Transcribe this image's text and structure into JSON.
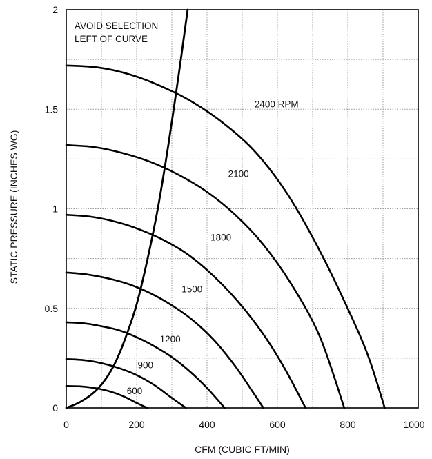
{
  "chart_data": {
    "type": "line",
    "title": "",
    "xlabel": "CFM (CUBIC FT/MIN)",
    "ylabel": "STATIC PRESSURE (INCHES WG)",
    "xlim": [
      0,
      1000
    ],
    "ylim": [
      0,
      2
    ],
    "xticks": [
      "0",
      "200",
      "400",
      "600",
      "800",
      "1000"
    ],
    "yticks": [
      "0",
      "0.5",
      "1",
      "1.5",
      "2"
    ],
    "grid": true,
    "annotation": [
      "AVOID SELECTION",
      "LEFT OF CURVE"
    ],
    "series": [
      {
        "name": "600",
        "x": [
          0,
          40,
          80,
          120,
          160,
          200,
          230
        ],
        "y": [
          0.11,
          0.108,
          0.1,
          0.085,
          0.06,
          0.025,
          0
        ]
      },
      {
        "name": "900",
        "x": [
          0,
          50,
          100,
          150,
          200,
          250,
          300,
          340
        ],
        "y": [
          0.245,
          0.24,
          0.225,
          0.2,
          0.165,
          0.115,
          0.05,
          0
        ]
      },
      {
        "name": "1200",
        "x": [
          0,
          50,
          100,
          150,
          200,
          250,
          300,
          350,
          400,
          450
        ],
        "y": [
          0.43,
          0.425,
          0.41,
          0.39,
          0.355,
          0.31,
          0.255,
          0.185,
          0.1,
          0
        ]
      },
      {
        "name": "1500",
        "x": [
          0,
          60,
          120,
          180,
          240,
          300,
          360,
          420,
          480,
          530,
          560
        ],
        "y": [
          0.68,
          0.67,
          0.65,
          0.62,
          0.575,
          0.515,
          0.44,
          0.34,
          0.21,
          0.08,
          0
        ]
      },
      {
        "name": "1800",
        "x": [
          0,
          70,
          140,
          210,
          280,
          350,
          420,
          490,
          560,
          620,
          680
        ],
        "y": [
          0.97,
          0.96,
          0.935,
          0.895,
          0.84,
          0.765,
          0.66,
          0.53,
          0.37,
          0.2,
          0
        ]
      },
      {
        "name": "2100",
        "x": [
          0,
          80,
          160,
          240,
          320,
          400,
          480,
          560,
          640,
          720,
          790
        ],
        "y": [
          1.32,
          1.31,
          1.28,
          1.235,
          1.17,
          1.085,
          0.97,
          0.82,
          0.62,
          0.36,
          0
        ]
      },
      {
        "name": "2400 RPM",
        "x": [
          0,
          90,
          180,
          270,
          360,
          450,
          540,
          630,
          720,
          810,
          860,
          905
        ],
        "y": [
          1.72,
          1.71,
          1.675,
          1.615,
          1.535,
          1.425,
          1.28,
          1.07,
          0.79,
          0.46,
          0.25,
          0
        ]
      }
    ],
    "boundary_curve": {
      "x": [
        0,
        40,
        80,
        110,
        140,
        170,
        200,
        230,
        260,
        290,
        320,
        345
      ],
      "y": [
        0,
        0.03,
        0.08,
        0.14,
        0.23,
        0.36,
        0.52,
        0.74,
        1.0,
        1.32,
        1.68,
        2.0
      ]
    }
  }
}
